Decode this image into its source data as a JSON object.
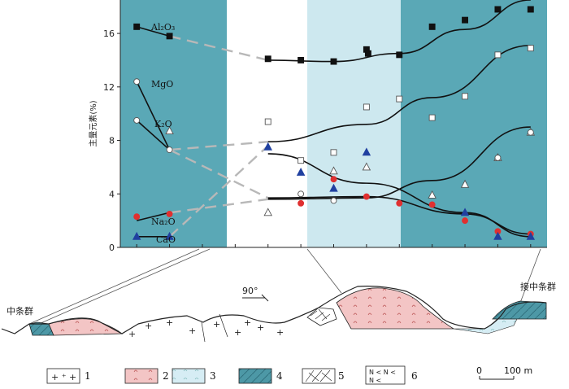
{
  "chart_data": {
    "type": "scatter",
    "ylabel": "主量元素(%)",
    "ylim": [
      0,
      18.5
    ],
    "yticks": [
      "0",
      "4",
      "8",
      "12",
      "16"
    ],
    "y_tick_values": [
      0,
      4,
      8,
      12,
      16
    ],
    "grid": false,
    "element_labels": [
      "Al₂O₃",
      "MgO",
      "K₂O",
      "Na₂O",
      "CaO"
    ],
    "series": [
      {
        "name": "Al₂O₃",
        "marker": "filled-square",
        "color": "#111111",
        "x": [
          1,
          2,
          5,
          6,
          7,
          8,
          8.05,
          9,
          10,
          11,
          12,
          13
        ],
        "y": [
          16.5,
          15.8,
          14.1,
          14.0,
          13.9,
          14.8,
          14.5,
          14.4,
          16.5,
          17.0,
          17.8,
          17.8
        ]
      },
      {
        "name": "MgO",
        "marker": "open-circle",
        "color": "#555555",
        "x": [
          1,
          2
        ],
        "y": [
          12.4,
          7.3
        ]
      },
      {
        "name": "K₂O",
        "marker": "open-square",
        "color": "#555555",
        "x": [
          5,
          6,
          7,
          8,
          9,
          10,
          11,
          12,
          13
        ],
        "y": [
          9.4,
          6.5,
          7.1,
          10.5,
          11.1,
          9.7,
          11.3,
          14.4,
          14.9
        ]
      },
      {
        "name": "K₂O (granite)",
        "marker": "open-circle",
        "color": "#555555",
        "x": [
          1
        ],
        "y": [
          9.5
        ]
      },
      {
        "name": "Na₂O",
        "marker": "filled-circle-red",
        "color": "#e03030",
        "x": [
          1,
          2,
          6,
          7,
          8,
          9,
          10,
          11,
          12,
          13
        ],
        "y": [
          2.3,
          2.5,
          3.3,
          5.1,
          3.8,
          3.3,
          3.2,
          2.0,
          1.2,
          1.0
        ]
      },
      {
        "name": "CaO",
        "marker": "filled-triangle",
        "color": "#2040a0",
        "x": [
          1,
          2,
          5,
          6,
          7,
          8,
          11,
          12,
          13
        ],
        "y": [
          0.8,
          0.8,
          7.5,
          5.6,
          4.4,
          7.1,
          2.6,
          0.8,
          0.8
        ]
      },
      {
        "name": "open triangles",
        "marker": "open-triangle",
        "color": "#555555",
        "x": [
          2,
          5,
          7,
          8,
          10,
          11,
          12,
          13
        ],
        "y": [
          8.7,
          2.6,
          5.7,
          6.0,
          3.9,
          4.7,
          6.7,
          8.6
        ]
      },
      {
        "name": "open circles",
        "marker": "open-circle",
        "color": "#555555",
        "x": [
          6,
          7,
          12,
          13
        ],
        "y": [
          4.0,
          3.5,
          6.7,
          8.6
        ]
      }
    ],
    "trend_lines": [
      {
        "name": "Al₂O₃-left",
        "style": "solid",
        "points": [
          [
            1,
            16.5
          ],
          [
            2,
            15.8
          ]
        ]
      },
      {
        "name": "Al₂O₃-gap",
        "style": "dashed",
        "points": [
          [
            2,
            15.8
          ],
          [
            5,
            14.0
          ]
        ]
      },
      {
        "name": "Al₂O₃-right",
        "style": "solid",
        "points": [
          [
            5,
            14.0
          ],
          [
            7,
            13.9
          ],
          [
            9,
            14.5
          ],
          [
            11,
            16.3
          ],
          [
            13,
            18.5
          ]
        ]
      },
      {
        "name": "MgO",
        "style": "solid",
        "points": [
          [
            1,
            12.4
          ],
          [
            2,
            7.3
          ]
        ]
      },
      {
        "name": "K₂O-left",
        "style": "solid",
        "points": [
          [
            1,
            9.5
          ],
          [
            2,
            7.3
          ]
        ]
      },
      {
        "name": "K₂O-gap",
        "style": "dashed",
        "points": [
          [
            2,
            7.3
          ],
          [
            5,
            7.9
          ]
        ]
      },
      {
        "name": "K₂O-right",
        "style": "solid",
        "points": [
          [
            5,
            7.9
          ],
          [
            8,
            9.2
          ],
          [
            10,
            11.2
          ],
          [
            13,
            15.1
          ]
        ]
      },
      {
        "name": "Na₂O-left",
        "style": "solid",
        "points": [
          [
            1,
            2.0
          ],
          [
            2,
            2.6
          ]
        ]
      },
      {
        "name": "Na₂O-gap",
        "style": "dashed",
        "points": [
          [
            2,
            2.6
          ],
          [
            5,
            3.6
          ]
        ]
      },
      {
        "name": "Na₂O-right",
        "style": "solid",
        "points": [
          [
            5,
            3.6
          ],
          [
            8,
            3.7
          ],
          [
            10,
            5.0
          ],
          [
            13,
            9.0
          ]
        ]
      },
      {
        "name": "CaO-left",
        "style": "solid",
        "points": [
          [
            1,
            0.8
          ],
          [
            2,
            0.8
          ]
        ]
      },
      {
        "name": "CaO-gap",
        "style": "dashed",
        "points": [
          [
            2,
            0.8
          ],
          [
            5,
            7.6
          ]
        ]
      },
      {
        "name": "CaO-right",
        "style": "solid",
        "points": [
          [
            5,
            7.0
          ],
          [
            8,
            4.8
          ],
          [
            11,
            2.6
          ],
          [
            13,
            0.8
          ]
        ]
      },
      {
        "name": "MgO-gap",
        "style": "dashed",
        "points": [
          [
            2,
            7.3
          ],
          [
            5,
            3.7
          ]
        ]
      },
      {
        "name": "MgO-right",
        "style": "solid",
        "points": [
          [
            5,
            3.7
          ],
          [
            8,
            3.8
          ],
          [
            11,
            2.5
          ],
          [
            13,
            1.0
          ]
        ]
      }
    ],
    "x_range": [
      0.5,
      13.5
    ]
  },
  "colors": {
    "dark_teal": "#5aa8b6",
    "light_teal": "#cde8ef",
    "pink": "#f3c5c5",
    "ground_line": "#222222",
    "red": "#e03030",
    "blue": "#2040a0"
  },
  "section": {
    "left_label": "中条群",
    "right_label": "接中条群",
    "dip_label": "90°"
  },
  "legend": {
    "items": [
      {
        "num": "1",
        "pattern": "granite-cross"
      },
      {
        "num": "2",
        "pattern": "pink-arc"
      },
      {
        "num": "3",
        "pattern": "light-blue-hatch"
      },
      {
        "num": "4",
        "pattern": "dark-teal-hatch"
      },
      {
        "num": "5",
        "pattern": "breccia"
      },
      {
        "num": "6",
        "pattern": "N-symbol"
      }
    ],
    "scale_start": "0",
    "scale_end": "100 m"
  }
}
